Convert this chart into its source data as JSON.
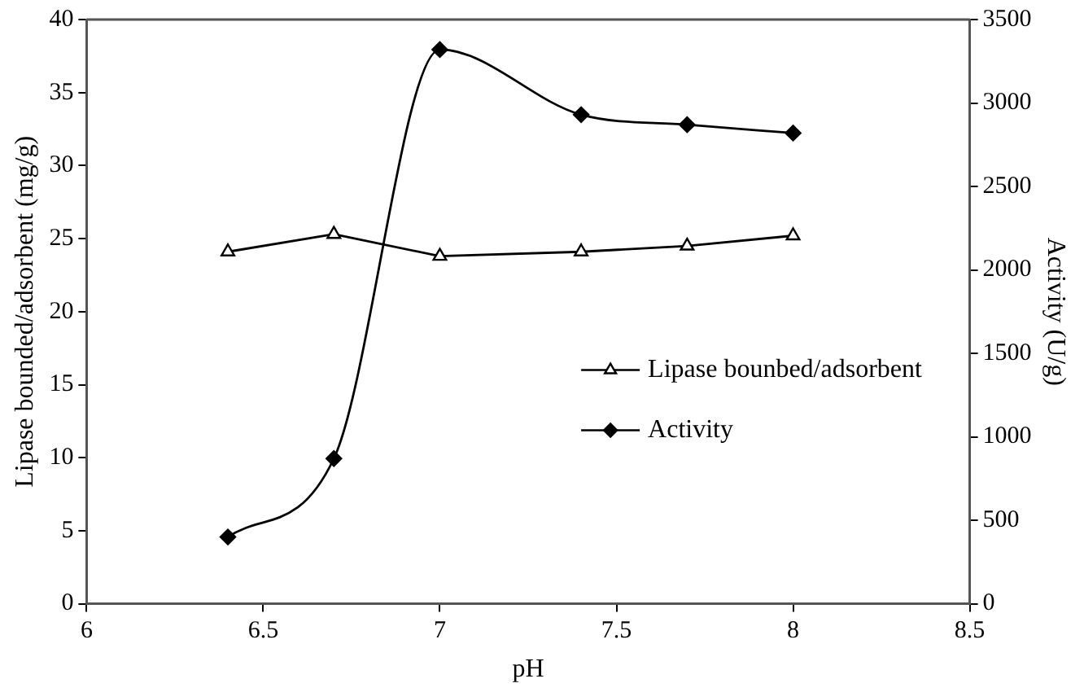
{
  "chart_data": {
    "type": "line",
    "xlabel": "pH",
    "ylabel": "Lipase bounded/adsorbent (mg/g)",
    "y2label": "Activity (U/g)",
    "x": [
      6.4,
      6.7,
      7.0,
      7.4,
      7.7,
      8.0
    ],
    "series": [
      {
        "name": "Lipase bounbed/adsorbent",
        "color": "#000000",
        "marker": "triangle",
        "values": [
          24.1,
          25.3,
          23.8,
          24.1,
          24.5,
          25.2
        ]
      },
      {
        "name": "Activity",
        "color": "#000000",
        "marker": "diamond",
        "axis": "y2",
        "values": [
          400,
          870,
          3320,
          2930,
          2870,
          2820
        ]
      }
    ],
    "xlim": [
      6,
      8.5
    ],
    "xticks": [
      6,
      6.5,
      7,
      7.5,
      8,
      8.5
    ],
    "ylim": [
      0,
      40
    ],
    "yticks": [
      0,
      5,
      10,
      15,
      20,
      25,
      30,
      35,
      40
    ],
    "y2lim": [
      0,
      3500
    ],
    "y2ticks": [
      0,
      500,
      1000,
      1500,
      2000,
      2500,
      3000,
      3500
    ],
    "grid": false,
    "legend": "right",
    "line_style": "solid"
  }
}
